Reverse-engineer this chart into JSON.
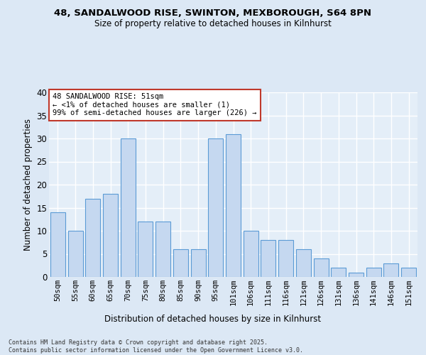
{
  "title_line1": "48, SANDALWOOD RISE, SWINTON, MEXBOROUGH, S64 8PN",
  "title_line2": "Size of property relative to detached houses in Kilnhurst",
  "xlabel": "Distribution of detached houses by size in Kilnhurst",
  "ylabel": "Number of detached properties",
  "categories": [
    "50sqm",
    "55sqm",
    "60sqm",
    "65sqm",
    "70sqm",
    "75sqm",
    "80sqm",
    "85sqm",
    "90sqm",
    "95sqm",
    "101sqm",
    "106sqm",
    "111sqm",
    "116sqm",
    "121sqm",
    "126sqm",
    "131sqm",
    "136sqm",
    "141sqm",
    "146sqm",
    "151sqm"
  ],
  "values": [
    14,
    10,
    17,
    18,
    30,
    12,
    12,
    6,
    6,
    30,
    31,
    10,
    8,
    8,
    6,
    4,
    2,
    1,
    2,
    3,
    2
  ],
  "bar_color": "#c5d8f0",
  "bar_edge_color": "#5b9bd5",
  "annotation_text": "48 SANDALWOOD RISE: 51sqm\n← <1% of detached houses are smaller (1)\n99% of semi-detached houses are larger (226) →",
  "annotation_box_color": "#ffffff",
  "annotation_box_edge_color": "#c0392b",
  "background_color": "#dce8f5",
  "plot_bg_color": "#e4eef8",
  "grid_color": "#ffffff",
  "ylim": [
    0,
    40
  ],
  "yticks": [
    0,
    5,
    10,
    15,
    20,
    25,
    30,
    35,
    40
  ],
  "footer_text": "Contains HM Land Registry data © Crown copyright and database right 2025.\nContains public sector information licensed under the Open Government Licence v3.0."
}
